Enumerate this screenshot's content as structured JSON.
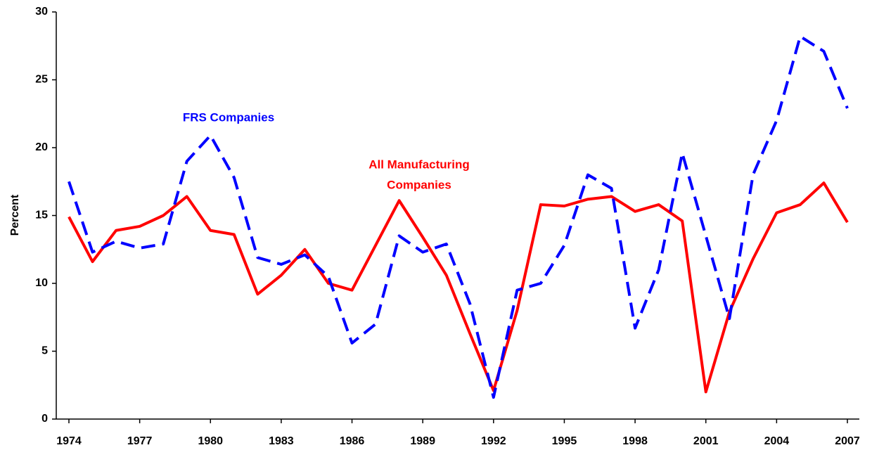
{
  "chart_data": {
    "type": "line",
    "y_label": "Percent",
    "x": [
      1974,
      1975,
      1976,
      1977,
      1978,
      1979,
      1980,
      1981,
      1982,
      1983,
      1984,
      1985,
      1986,
      1987,
      1988,
      1989,
      1990,
      1991,
      1992,
      1993,
      1994,
      1995,
      1996,
      1997,
      1998,
      1999,
      2000,
      2001,
      2002,
      2003,
      2004,
      2005,
      2006,
      2007
    ],
    "series": [
      {
        "name": "All Manufacturing Companies",
        "color": "#ff0000",
        "dashed": false,
        "values": [
          14.9,
          11.6,
          13.9,
          14.2,
          15.0,
          16.4,
          13.9,
          13.6,
          9.2,
          10.6,
          12.5,
          10.0,
          9.5,
          12.8,
          16.1,
          13.4,
          10.6,
          6.3,
          2.1,
          8.0,
          15.8,
          15.7,
          16.2,
          16.4,
          15.3,
          15.8,
          14.6,
          2.0,
          7.9,
          11.8,
          15.2,
          15.8,
          17.4,
          14.5
        ]
      },
      {
        "name": "FRS Companies",
        "color": "#0000ff",
        "dashed": true,
        "values": [
          17.5,
          12.3,
          13.1,
          12.6,
          12.9,
          19.0,
          20.9,
          17.8,
          11.9,
          11.4,
          12.1,
          10.5,
          5.6,
          7.0,
          13.5,
          12.3,
          12.9,
          8.5,
          1.6,
          9.5,
          10.0,
          12.8,
          18.0,
          17.0,
          6.7,
          11.0,
          19.6,
          13.5,
          7.4,
          18.0,
          22.0,
          28.2,
          27.1,
          22.9
        ]
      }
    ],
    "annotations": [
      {
        "text": [
          "FRS Companies"
        ],
        "color": "#0000ff"
      },
      {
        "text": [
          "All Manufacturing",
          "Companies"
        ],
        "color": "#ff0000"
      }
    ],
    "xlim": [
      1974,
      2007
    ],
    "xticks": [
      1974,
      1977,
      1980,
      1983,
      1986,
      1989,
      1992,
      1995,
      1998,
      2001,
      2004,
      2007
    ],
    "ylim": [
      0,
      30
    ],
    "yticks": [
      0,
      5,
      10,
      15,
      20,
      25,
      30
    ],
    "grid": false
  }
}
